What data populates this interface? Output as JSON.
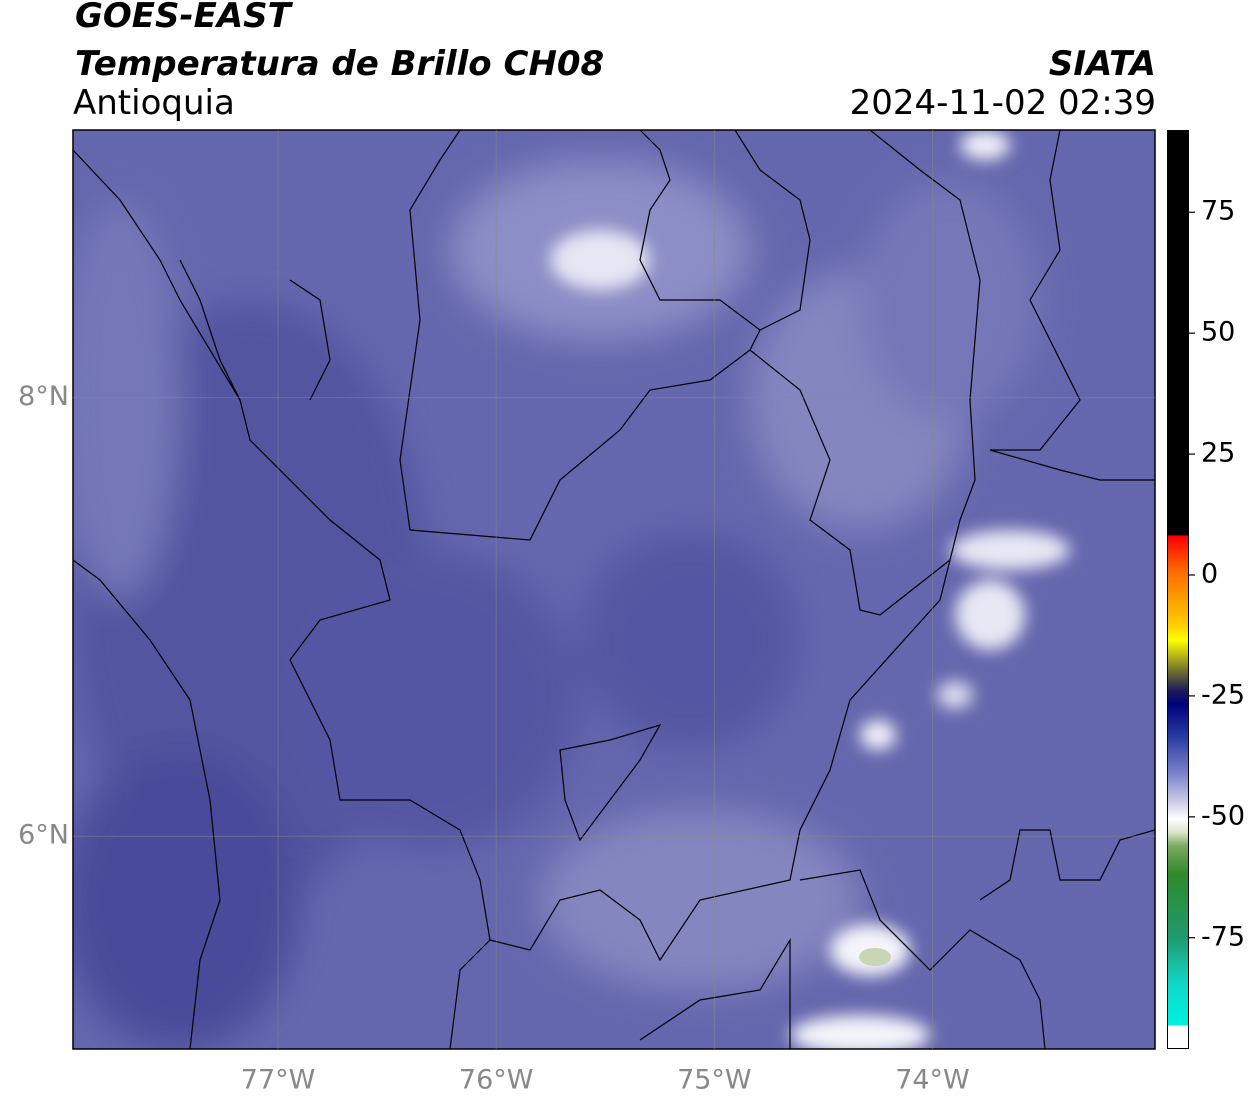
{
  "header": {
    "satellite": "GOES-EAST",
    "product": "Temperatura de Brillo CH08",
    "region": "Antioquia",
    "source": "SIATA",
    "datetime": "2024-11-02 02:39"
  },
  "map": {
    "xlim": [
      -77.94,
      -72.98
    ],
    "ylim": [
      5.03,
      9.22
    ],
    "xticks": [
      {
        "value": -77,
        "label": "77°W"
      },
      {
        "value": -76,
        "label": "76°W"
      },
      {
        "value": -75,
        "label": "75°W"
      },
      {
        "value": -74,
        "label": "74°W"
      }
    ],
    "yticks": [
      {
        "value": 8,
        "label": "8°N"
      },
      {
        "value": 6,
        "label": "6°N"
      }
    ],
    "grid": true
  },
  "colorbar": {
    "lim": [
      -98,
      92
    ],
    "ticks": [
      75,
      50,
      25,
      0,
      -25,
      -50,
      -75
    ]
  }
}
